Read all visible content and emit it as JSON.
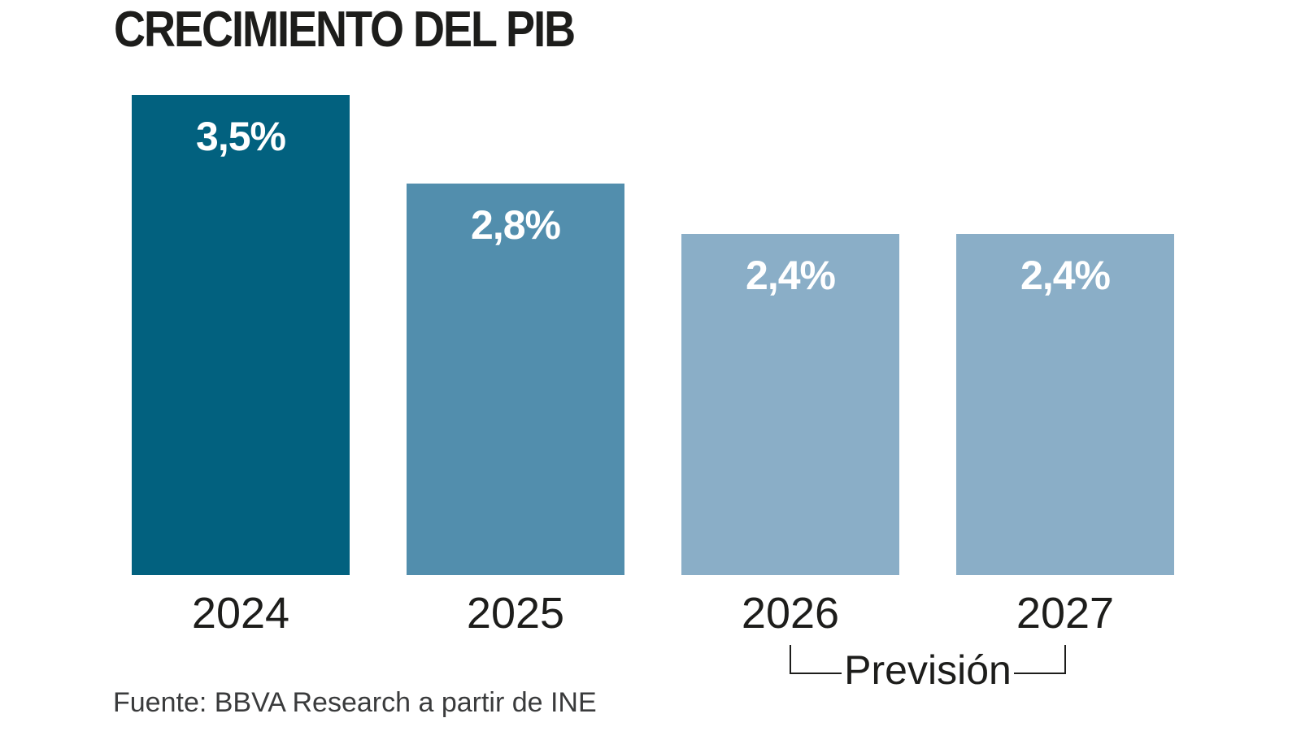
{
  "title": "CRECIMIENTO DEL PIB",
  "source": "Fuente: BBVA Research a partir de INE",
  "colors": {
    "background": "#ffffff",
    "text_primary": "#1d1d1b",
    "text_source": "#3a3b3c",
    "value_label_text": "#ffffff"
  },
  "chart_data": {
    "type": "bar",
    "title": "CRECIMIENTO DEL PIB",
    "categories": [
      "2024",
      "2025",
      "2026",
      "2027"
    ],
    "values": [
      3.5,
      2.8,
      2.4,
      2.4
    ],
    "value_labels": [
      "3,5%",
      "2,8%",
      "2,4%",
      "2,4%"
    ],
    "bar_colors": [
      "#02617f",
      "#528ead",
      "#8aaec7",
      "#8aaec7"
    ],
    "xlabel": "",
    "ylabel": "",
    "ylim": [
      0,
      3.5
    ],
    "grid": false,
    "legend": "none",
    "annotation": {
      "label": "Previsión",
      "start_category": "2026",
      "end_category": "2027"
    },
    "source": "Fuente: BBVA Research a partir de INE"
  }
}
